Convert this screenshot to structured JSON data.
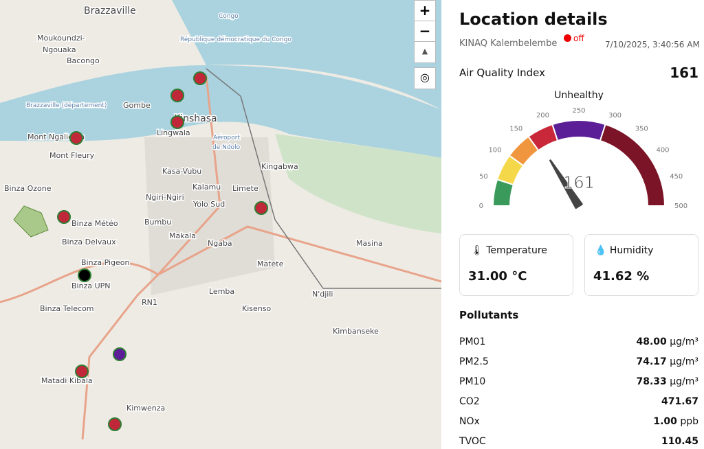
{
  "map": {
    "labels": [
      "Brazzaville",
      "Moukoundzi-",
      "Ngouaka",
      "Bacongo",
      "Congo",
      "République démocratique du Congo",
      "Brazzaville (département)",
      "Gombe",
      "Kinshasa",
      "Lingwala",
      "Aéroport",
      "de Ndolo",
      "Mont Ngaliema",
      "Mont Fleury",
      "Kingabwa",
      "Kasa-Vubu",
      "Binza Ozone",
      "Kalamu",
      "Limete",
      "Ngiri-Ngiri",
      "Yolo Sud",
      "Bumbu",
      "Makala",
      "Ngaba",
      "Binza Météo",
      "Masina",
      "Binza Delvaux",
      "Binza Pigeon",
      "Matete",
      "Binza UPN",
      "Lemba",
      "N'djili",
      "RN1",
      "Binza Telecom",
      "Kisenso",
      "Kimbanseke",
      "Matadi Kibala",
      "Kimwenza"
    ],
    "controls": {
      "zoom_in": "+",
      "zoom_out": "−"
    },
    "markers": [
      {
        "color": "#c0283a"
      },
      {
        "color": "#c0283a"
      },
      {
        "color": "#c0283a"
      },
      {
        "color": "#c0283a"
      },
      {
        "color": "#c0283a"
      },
      {
        "color": "#c0283a"
      },
      {
        "color": "#000000"
      },
      {
        "color": "#5c1e96"
      },
      {
        "color": "#c0283a"
      },
      {
        "color": "#c0283a"
      }
    ]
  },
  "panel": {
    "title": "Location details",
    "station": "KINAQ Kalembelembe",
    "status": "off",
    "timestamp": "7/10/2025, 3:40:56 AM",
    "aqi_label": "Air Quality Index",
    "aqi": 161,
    "category": "Unhealthy",
    "gauge": {
      "range": [
        0,
        500
      ],
      "ticks": [
        0,
        50,
        100,
        150,
        200,
        250,
        300,
        350,
        400,
        450,
        500
      ],
      "bands": [
        {
          "from": 0,
          "to": 50,
          "color": "#3a9a5c"
        },
        {
          "from": 50,
          "to": 100,
          "color": "#f5d84a"
        },
        {
          "from": 100,
          "to": 150,
          "color": "#f0963e"
        },
        {
          "from": 150,
          "to": 200,
          "color": "#c8283a"
        },
        {
          "from": 200,
          "to": 300,
          "color": "#5c1e96"
        },
        {
          "from": 300,
          "to": 500,
          "color": "#7b1426"
        }
      ]
    },
    "cards": [
      {
        "label": "Temperature",
        "value": "31.00 °C"
      },
      {
        "label": "Humidity",
        "value": "41.62 %"
      }
    ],
    "pollutants_title": "Pollutants",
    "pollutants": [
      {
        "name": "PM01",
        "value": "48.00",
        "unit": "µg/m³"
      },
      {
        "name": "PM2.5",
        "value": "74.17",
        "unit": "µg/m³"
      },
      {
        "name": "PM10",
        "value": "78.33",
        "unit": "µg/m³"
      },
      {
        "name": "CO2",
        "value": "471.67",
        "unit": null
      },
      {
        "name": "NOx",
        "value": "1.00",
        "unit": "ppb"
      },
      {
        "name": "TVOC",
        "value": "110.45",
        "unit": null
      }
    ]
  }
}
